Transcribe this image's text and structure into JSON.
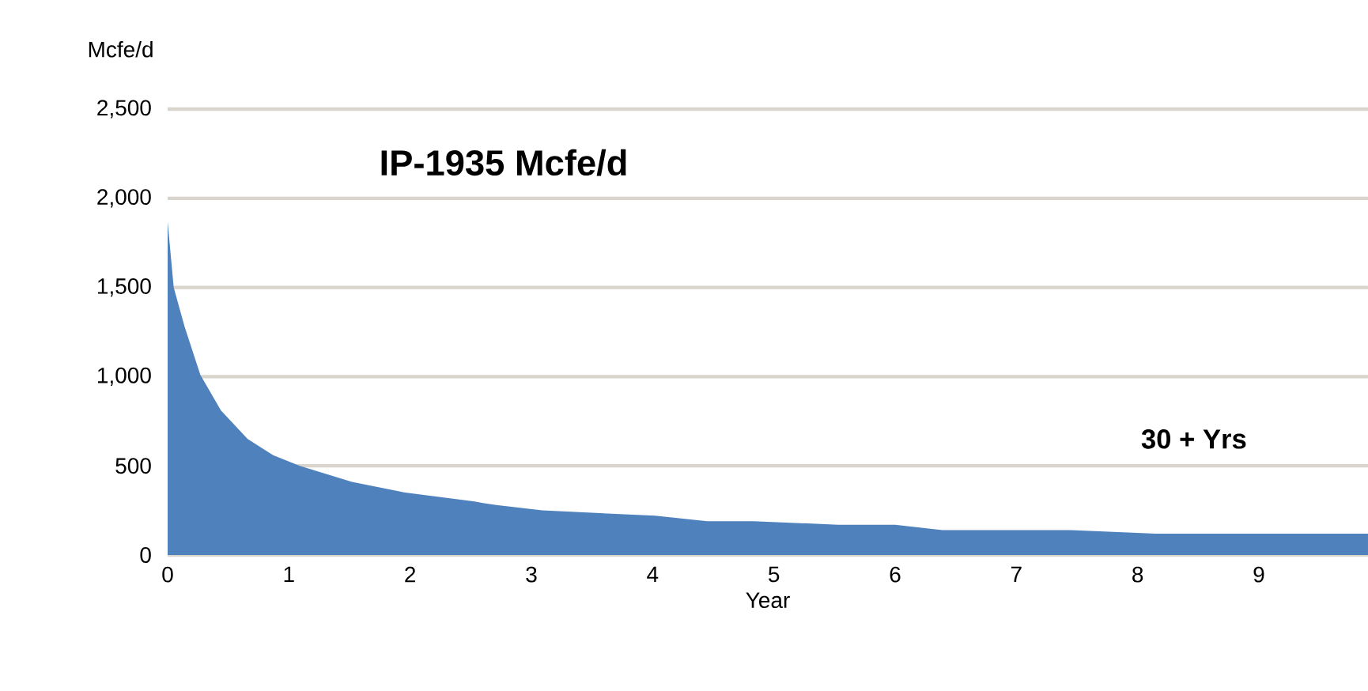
{
  "chart_data": {
    "type": "area",
    "xlabel": "Year",
    "ylabel": "Mcfe/d",
    "annotations": [
      "IP-1935 Mcfe/d",
      "30 + Yrs"
    ],
    "x": [
      0,
      0.05,
      0.14,
      0.27,
      0.44,
      0.66,
      0.87,
      1.09,
      1.52,
      1.96,
      2.53,
      2.61,
      2.71,
      3.09,
      4.02,
      4.45,
      4.83,
      5.53,
      6.0,
      6.39,
      7.45,
      8.15,
      9.9
    ],
    "series": [
      {
        "color": "#4f81bd",
        "values": [
          1870,
          1500,
          1280,
          1010,
          810,
          650,
          560,
          500,
          410,
          350,
          300,
          290,
          280,
          250,
          220,
          190,
          190,
          170,
          170,
          140,
          140,
          120,
          120
        ]
      }
    ],
    "xlim": [
      0,
      9.9
    ],
    "ylim": [
      0,
      2500
    ],
    "xticks": [
      0,
      1,
      2,
      3,
      4,
      5,
      6,
      7,
      8,
      9
    ],
    "yticks": [
      0,
      {
        "value": 500,
        "label": "500"
      },
      {
        "value": 1000,
        "label": "1,000"
      },
      {
        "value": 1500,
        "label": "1,500"
      },
      {
        "value": 2000,
        "label": "2,000"
      },
      {
        "value": 2500,
        "label": "2,500"
      }
    ],
    "grid": "y"
  }
}
